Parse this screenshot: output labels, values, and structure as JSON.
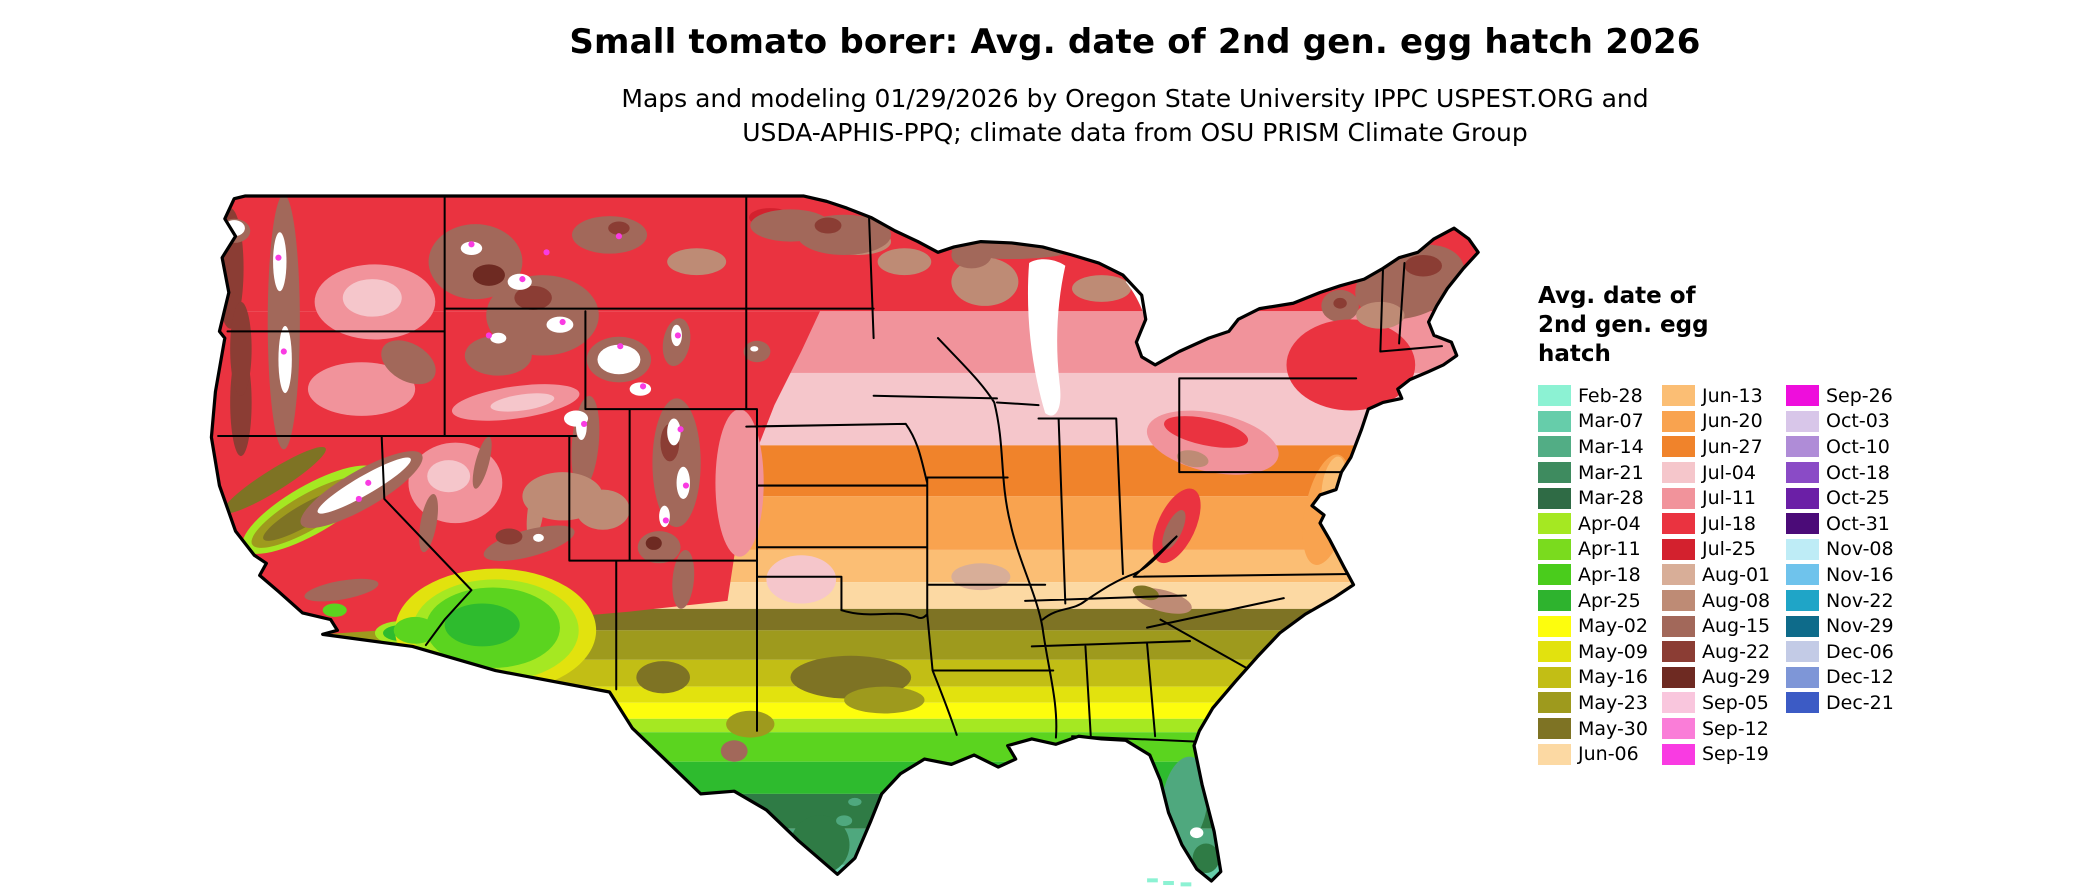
{
  "header": {
    "title": "Small tomato borer: Avg. date of 2nd gen. egg hatch 2026",
    "subtitle_lines": [
      "Maps and modeling 01/29/2026 by Oregon State University IPPC USPEST.ORG and",
      "USDA-APHIS-PPQ; climate data from OSU PRISM Climate Group"
    ]
  },
  "legend": {
    "title": "Avg. date of\n2nd gen. egg\nhatch",
    "column_ranges": [
      [
        0,
        15
      ],
      [
        15,
        30
      ],
      [
        30,
        43
      ]
    ]
  },
  "legend_items": [
    {
      "label": "Feb-28",
      "color": "#8CF2D3"
    },
    {
      "label": "Mar-07",
      "color": "#66CDAA"
    },
    {
      "label": "Mar-14",
      "color": "#52AD85"
    },
    {
      "label": "Mar-21",
      "color": "#3E8B5F"
    },
    {
      "label": "Mar-28",
      "color": "#2F6B45"
    },
    {
      "label": "Apr-04",
      "color": "#A5E822"
    },
    {
      "label": "Apr-11",
      "color": "#7ADB1E"
    },
    {
      "label": "Apr-18",
      "color": "#4ACC1C"
    },
    {
      "label": "Apr-25",
      "color": "#2EB32E"
    },
    {
      "label": "May-02",
      "color": "#FDFD0D"
    },
    {
      "label": "May-09",
      "color": "#E2E20E"
    },
    {
      "label": "May-16",
      "color": "#C2BE15"
    },
    {
      "label": "May-23",
      "color": "#9E9A1D"
    },
    {
      "label": "May-30",
      "color": "#7E7324"
    },
    {
      "label": "Jun-06",
      "color": "#FCD9A3"
    },
    {
      "label": "Jun-13",
      "color": "#FBBE74"
    },
    {
      "label": "Jun-20",
      "color": "#F9A34F"
    },
    {
      "label": "Jun-27",
      "color": "#F0832B"
    },
    {
      "label": "Jul-04",
      "color": "#F5C6CB"
    },
    {
      "label": "Jul-11",
      "color": "#F1939B"
    },
    {
      "label": "Jul-18",
      "color": "#EA3340"
    },
    {
      "label": "Jul-25",
      "color": "#D3212E"
    },
    {
      "label": "Aug-01",
      "color": "#D8AE98"
    },
    {
      "label": "Aug-08",
      "color": "#BE8B75"
    },
    {
      "label": "Aug-15",
      "color": "#A2685A"
    },
    {
      "label": "Aug-22",
      "color": "#8B3D34"
    },
    {
      "label": "Aug-29",
      "color": "#6E2A22"
    },
    {
      "label": "Sep-05",
      "color": "#F9C6DD"
    },
    {
      "label": "Sep-12",
      "color": "#FA7DD8"
    },
    {
      "label": "Sep-19",
      "color": "#F93BE2"
    },
    {
      "label": "Sep-26",
      "color": "#EE0EDC"
    },
    {
      "label": "Oct-03",
      "color": "#D8C6E9"
    },
    {
      "label": "Oct-10",
      "color": "#AF8CD7"
    },
    {
      "label": "Oct-18",
      "color": "#8A4BC6"
    },
    {
      "label": "Oct-25",
      "color": "#6B1FA6"
    },
    {
      "label": "Oct-31",
      "color": "#4B0B78"
    },
    {
      "label": "Nov-08",
      "color": "#BEECF6"
    },
    {
      "label": "Nov-16",
      "color": "#6FC3EC"
    },
    {
      "label": "Nov-22",
      "color": "#1FA5C7"
    },
    {
      "label": "Nov-29",
      "color": "#0E6B8A"
    },
    {
      "label": "Dec-06",
      "color": "#C3CBE6"
    },
    {
      "label": "Dec-12",
      "color": "#7E96D7"
    },
    {
      "label": "Dec-21",
      "color": "#3C5BC5"
    }
  ],
  "map": {
    "description": "Continental US raster map of average 2nd generation egg hatch date",
    "palette": {
      "red": "#EA3340",
      "red_dark": "#D3212E",
      "salmon": "#F1939B",
      "pale_pink": "#F5C6CB",
      "orange_dark": "#F0832B",
      "orange": "#F9A34F",
      "orange_light": "#FBBE74",
      "tan": "#FCD9A3",
      "brown_light": "#D8AE98",
      "brown_rosy": "#BE8B75",
      "brown": "#A2685A",
      "brown_dark": "#8B3D34",
      "brown_darkest": "#6E2A22",
      "olive_dark": "#7E7324",
      "olive": "#9E9A1D",
      "olive_yellow": "#C2BE15",
      "yellow_deep": "#E2E20E",
      "yellow": "#FDFD0D",
      "chartreuse": "#A5E822",
      "green_bright": "#5BD41F",
      "green": "#2EBB2E",
      "green_dark": "#2F7B45",
      "seagreen": "#4FA87E",
      "seagreen_light": "#66CDAA",
      "aqua": "#8CF2D3",
      "magenta": "#F93BE2",
      "white": "#FFFFFF"
    }
  }
}
